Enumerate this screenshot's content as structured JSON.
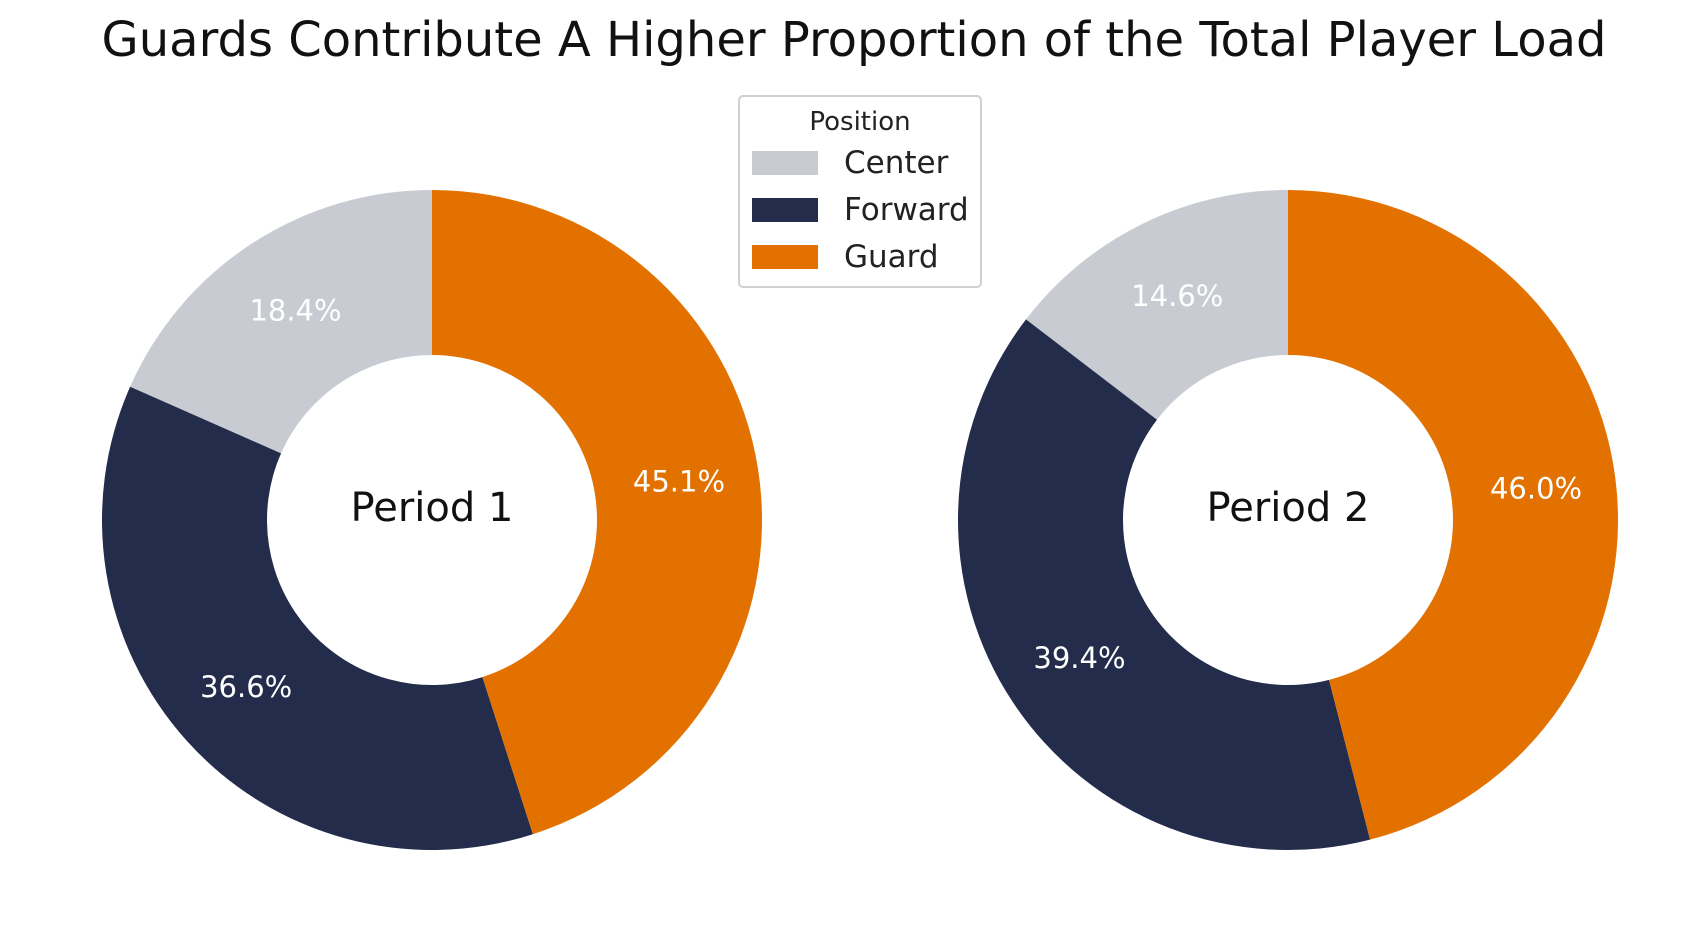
{
  "chart_data": [
    {
      "type": "pie",
      "title": "Guards Contribute A Higher Proportion of the Total Player Load",
      "center_label": "Period 1",
      "categories": [
        "Center",
        "Forward",
        "Guard"
      ],
      "values": [
        18.4,
        36.6,
        45.1
      ],
      "value_labels": [
        "18.4%",
        "36.6%",
        "45.1%"
      ],
      "colors": [
        "#c8cbd1",
        "#232c4b",
        "#e37100"
      ]
    },
    {
      "type": "pie",
      "center_label": "Period 2",
      "categories": [
        "Center",
        "Forward",
        "Guard"
      ],
      "values": [
        14.6,
        39.4,
        46.0
      ],
      "value_labels": [
        "14.6%",
        "39.4%",
        "46.0%"
      ],
      "colors": [
        "#c8cbd1",
        "#232c4b",
        "#e37100"
      ]
    }
  ],
  "legend": {
    "title": "Position",
    "placement": "top-center",
    "items": [
      {
        "label": "Center",
        "color": "#c8cbd1"
      },
      {
        "label": "Forward",
        "color": "#232c4b"
      },
      {
        "label": "Guard",
        "color": "#e37100"
      }
    ]
  },
  "title": "Guards Contribute A Higher Proportion of the Total Player Load"
}
